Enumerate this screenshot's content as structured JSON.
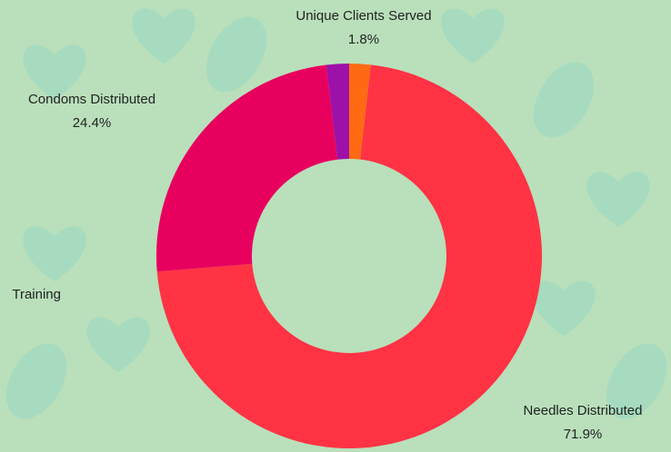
{
  "chart_data": {
    "type": "donut",
    "categories": [
      "Unique Clients Served",
      "Needles Distributed",
      "Condoms Distributed",
      "Training"
    ],
    "values": [
      1.8,
      71.9,
      24.4,
      1.9
    ],
    "value_labels": [
      "1.8%",
      "71.9%",
      "24.4%",
      null
    ],
    "colors": [
      "#ff6a13",
      "#ff3344",
      "#e8005f",
      "#9e11a8"
    ]
  }
}
